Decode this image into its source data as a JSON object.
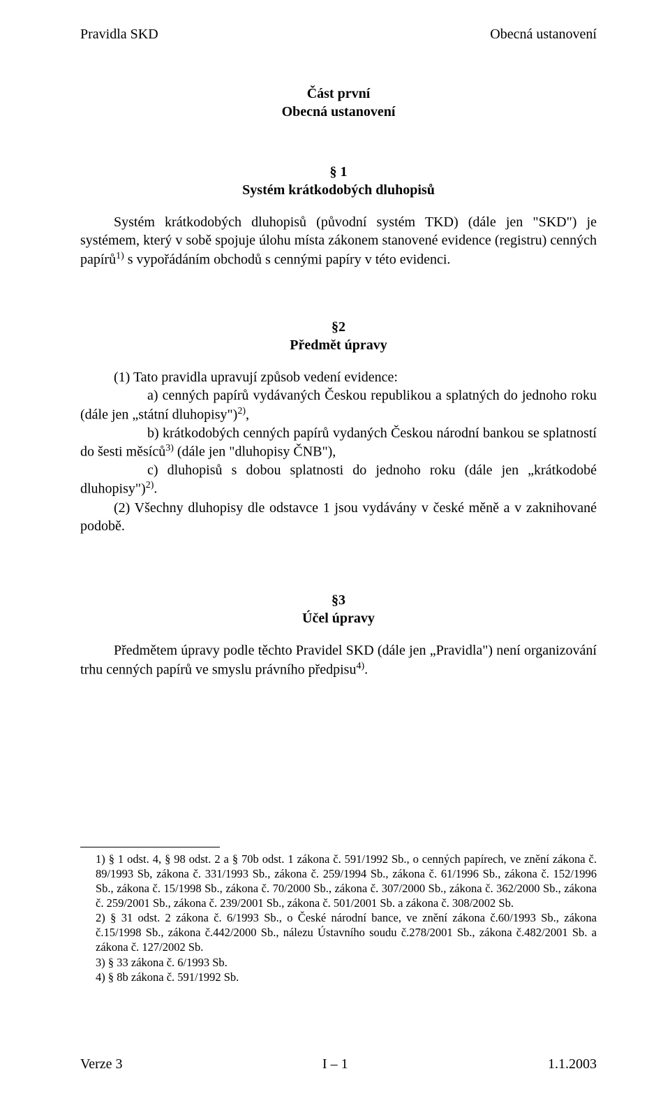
{
  "header": {
    "left": "Pravidla SKD",
    "right": "Obecná ustanovení"
  },
  "part": {
    "line1": "Část první",
    "line2": "Obecná ustanovení"
  },
  "s1": {
    "num": "§ 1",
    "title": "Systém krátkodobých dluhopisů",
    "para": "Systém krátkodobých dluhopisů (původní systém TKD) (dále jen \"SKD\") je systémem, který v sobě spojuje úlohu místa zákonem stanovené evidence (registru) cenných papírů",
    "sup1": "1)",
    "tail": " s vypořádáním obchodů s cennými papíry v této evidenci."
  },
  "s2": {
    "num": "§2",
    "title": "Předmět úpravy",
    "lead": "(1) Tato pravidla upravují způsob vedení evidence:",
    "a1": "a) cenných papírů vydávaných Českou republikou a splatných do jednoho roku (dále jen „státní dluhopisy\")",
    "a_sup": "2)",
    "a_tail": ",",
    "b1": "b) krátkodobých cenných papírů vydaných Českou národní bankou se splatností do šesti měsíců",
    "b_sup": "3)",
    "b_tail": " (dále jen \"dluhopisy ČNB\"),",
    "c1": "c) dluhopisů s dobou splatnosti do jednoho roku (dále jen „krátkodobé dluhopisy\")",
    "c_sup": "2)",
    "c_tail": ".",
    "p2": "(2) Všechny dluhopisy dle odstavce 1 jsou vydávány v české měně a v zaknihované podobě."
  },
  "s3": {
    "num": "§3",
    "title": "Účel úpravy",
    "para": "Předmětem úpravy podle těchto Pravidel SKD (dále jen „Pravidla\") není organizování trhu cenných papírů ve smyslu právního předpisu",
    "sup": "4)",
    "tail": "."
  },
  "footnotes": {
    "f1": "1) § 1 odst. 4, § 98 odst. 2 a § 70b odst. 1 zákona č. 591/1992 Sb., o cenných papírech, ve znění zákona č. 89/1993 Sb, zákona č. 331/1993 Sb.,  zákona č.  259/1994 Sb.,  zákona č. 61/1996 Sb., zákona č. 152/1996 Sb.,  zákona č. 15/1998 Sb., zákona č. 70/2000 Sb., zákona č. 307/2000 Sb., zákona č. 362/2000 Sb., zákona č. 259/2001 Sb., zákona č.  239/2001 Sb., zákona č. 501/2001 Sb.  a  zákona č. 308/2002 Sb.",
    "f2": "2) § 31 odst.  2 zákona č. 6/1993 Sb., o České národní bance,  ve znění zákona č.60/1993 Sb., zákona č.15/1998 Sb., zákona č.442/2000 Sb., nálezu Ústavního soudu č.278/2001 Sb., zákona č.482/2001 Sb. a zákona č. 127/2002 Sb.",
    "f3": "3) § 33 zákona č. 6/1993 Sb.",
    "f4": "4) § 8b zákona č. 591/1992 Sb."
  },
  "footer": {
    "left": "Verze 3",
    "center": "I – 1",
    "right": "1.1.2003"
  }
}
